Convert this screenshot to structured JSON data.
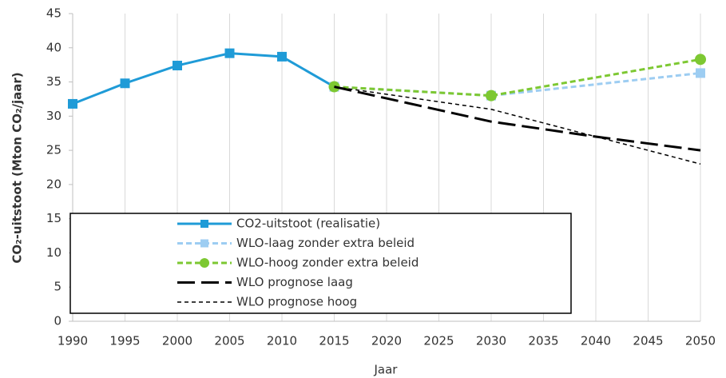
{
  "chart_data": {
    "type": "line",
    "xlabel": "Jaar",
    "ylabel": "CO₂-uitstoot (Mton CO₂/jaar)",
    "xlim": [
      1990,
      2050
    ],
    "xticks": [
      1990,
      1995,
      2000,
      2005,
      2010,
      2015,
      2020,
      2025,
      2030,
      2035,
      2040,
      2045,
      2050
    ],
    "ylim": [
      0,
      45
    ],
    "yticks": [
      0,
      5,
      10,
      15,
      20,
      25,
      30,
      35,
      40,
      45
    ],
    "grid": "x",
    "legend": "lower left",
    "series": [
      {
        "name": "CO2-uitstoot (realisatie)",
        "color": "#1f9bd7",
        "dash": "solid",
        "marker": "square",
        "x": [
          1990,
          1995,
          2000,
          2005,
          2010,
          2015
        ],
        "values": [
          31.8,
          34.8,
          37.4,
          39.2,
          38.7,
          34.3
        ]
      },
      {
        "name": "WLO-laag zonder extra beleid",
        "color": "#9dcdf2",
        "dash": "dashed",
        "marker": "square",
        "x": [
          2015,
          2030,
          2050
        ],
        "values": [
          34.3,
          33.0,
          36.3
        ]
      },
      {
        "name": "WLO-hoog zonder extra beleid",
        "color": "#7dc832",
        "dash": "dashed",
        "marker": "circle",
        "x": [
          2015,
          2030,
          2050
        ],
        "values": [
          34.3,
          33.0,
          38.3
        ]
      },
      {
        "name": "WLO prognose laag",
        "color": "#000000",
        "dash": "long",
        "marker": "none",
        "x": [
          2015,
          2030,
          2040,
          2050
        ],
        "values": [
          34.3,
          29.2,
          27.0,
          25.0
        ]
      },
      {
        "name": "WLO prognose hoog",
        "color": "#000000",
        "dash": "short",
        "marker": "none",
        "x": [
          2015,
          2030,
          2040,
          2050
        ],
        "values": [
          34.3,
          31.0,
          27.0,
          23.0
        ]
      }
    ]
  }
}
